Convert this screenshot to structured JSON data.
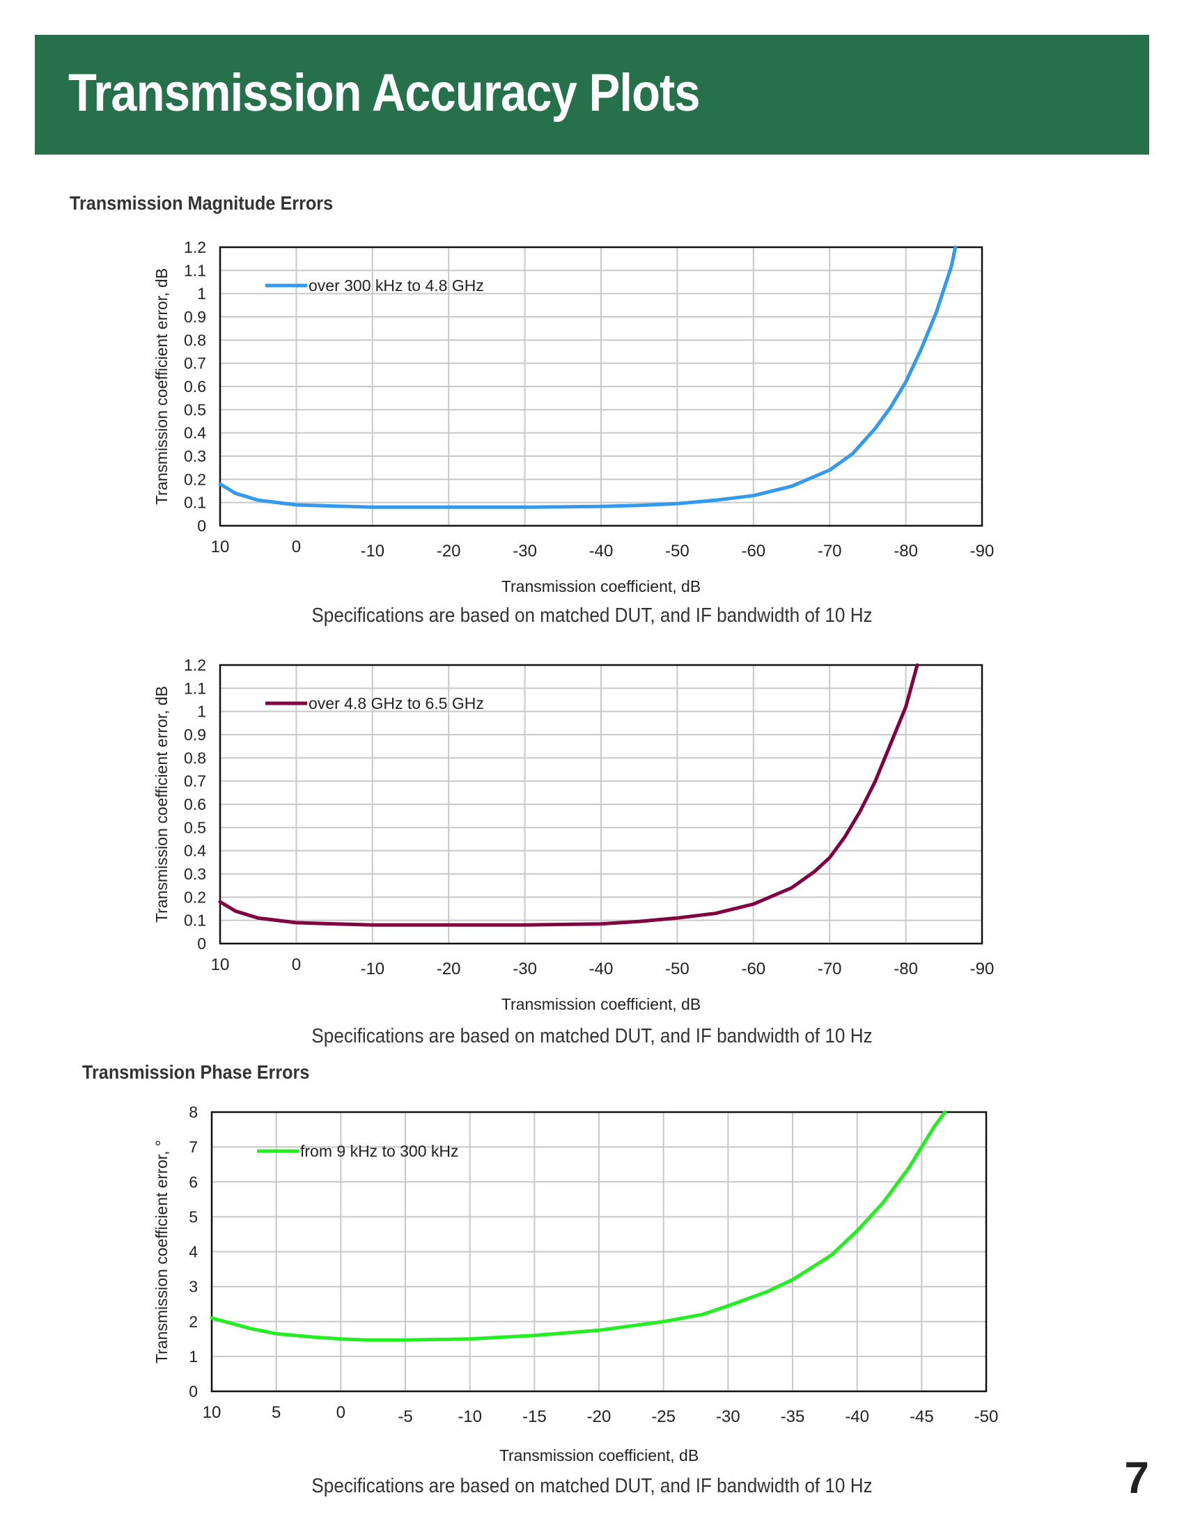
{
  "header": {
    "title": "Transmission Accuracy Plots"
  },
  "sections": {
    "magnitude_heading": "Transmission Magnitude Errors",
    "phase_heading": "Transmission Phase Errors"
  },
  "captions": [
    "Specifications are based on matched DUT, and IF bandwidth of 10 Hz",
    "Specifications are based on matched DUT, and IF bandwidth of 10 Hz",
    "Specifications are based on matched DUT, and IF bandwidth of 10 Hz"
  ],
  "page_number": "7",
  "chart_data": [
    {
      "type": "line",
      "xlabel": "Transmission coefficient, dB",
      "ylabel": "Transmission coefficient error, dB",
      "xlim": [
        10,
        -90
      ],
      "ylim": [
        0,
        1.2
      ],
      "xticks": [
        "10",
        "0",
        "-10",
        "-20",
        "-30",
        "-40",
        "-50",
        "-60",
        "-70",
        "-80",
        "-90"
      ],
      "yticks": [
        "0",
        "0.1",
        "0.2",
        "0.3",
        "0.4",
        "0.5",
        "0.6",
        "0.7",
        "0.8",
        "0.9",
        "1",
        "1.1",
        "1.2"
      ],
      "grid": true,
      "legend_position": "top-left",
      "color": "#3399ee",
      "series": [
        {
          "name": "over 300 kHz to 4.8 GHz",
          "x": [
            10,
            8,
            5,
            0,
            -5,
            -10,
            -20,
            -30,
            -40,
            -45,
            -50,
            -55,
            -60,
            -65,
            -70,
            -73,
            -76,
            -78,
            -80,
            -82,
            -84,
            -86,
            -86.5
          ],
          "y": [
            0.18,
            0.14,
            0.11,
            0.09,
            0.085,
            0.08,
            0.08,
            0.08,
            0.083,
            0.088,
            0.095,
            0.11,
            0.13,
            0.17,
            0.24,
            0.31,
            0.42,
            0.51,
            0.62,
            0.76,
            0.92,
            1.12,
            1.2
          ]
        }
      ]
    },
    {
      "type": "line",
      "xlabel": "Transmission coefficient, dB",
      "ylabel": "Transmission coefficient error, dB",
      "xlim": [
        10,
        -90
      ],
      "ylim": [
        0,
        1.2
      ],
      "xticks": [
        "10",
        "0",
        "-10",
        "-20",
        "-30",
        "-40",
        "-50",
        "-60",
        "-70",
        "-80",
        "-90"
      ],
      "yticks": [
        "0",
        "0.1",
        "0.2",
        "0.3",
        "0.4",
        "0.5",
        "0.6",
        "0.7",
        "0.8",
        "0.9",
        "1",
        "1.1",
        "1.2"
      ],
      "grid": true,
      "legend_position": "top-left",
      "color": "#800040",
      "series": [
        {
          "name": "over 4.8 GHz to 6.5 GHz",
          "x": [
            10,
            8,
            5,
            0,
            -5,
            -10,
            -20,
            -30,
            -40,
            -45,
            -50,
            -55,
            -60,
            -65,
            -68,
            -70,
            -72,
            -74,
            -76,
            -78,
            -80,
            -81,
            -81.5
          ],
          "y": [
            0.18,
            0.14,
            0.11,
            0.09,
            0.085,
            0.08,
            0.08,
            0.08,
            0.085,
            0.095,
            0.11,
            0.13,
            0.17,
            0.24,
            0.31,
            0.37,
            0.46,
            0.57,
            0.7,
            0.86,
            1.02,
            1.14,
            1.2
          ]
        }
      ]
    },
    {
      "type": "line",
      "xlabel": "Transmission coefficient, dB",
      "ylabel": "Transmission coefficient error, °",
      "xlim": [
        10,
        -50
      ],
      "ylim": [
        0,
        8
      ],
      "xticks": [
        "10",
        "5",
        "0",
        "-5",
        "-10",
        "-15",
        "-20",
        "-25",
        "-30",
        "-35",
        "-40",
        "-45",
        "-50"
      ],
      "yticks": [
        "0",
        "1",
        "2",
        "3",
        "4",
        "5",
        "6",
        "7",
        "8"
      ],
      "grid": true,
      "legend_position": "top-left",
      "color": "#22ee22",
      "series": [
        {
          "name": "from 9 kHz to 300 kHz",
          "x": [
            10,
            7,
            5,
            2,
            0,
            -2,
            -5,
            -10,
            -15,
            -20,
            -25,
            -28,
            -30,
            -33,
            -35,
            -38,
            -40,
            -42,
            -44,
            -45,
            -46,
            -46.8
          ],
          "y": [
            2.1,
            1.8,
            1.65,
            1.55,
            1.5,
            1.47,
            1.47,
            1.5,
            1.6,
            1.75,
            2.0,
            2.2,
            2.45,
            2.85,
            3.2,
            3.9,
            4.6,
            5.4,
            6.4,
            7.0,
            7.6,
            8.0
          ]
        }
      ]
    }
  ]
}
